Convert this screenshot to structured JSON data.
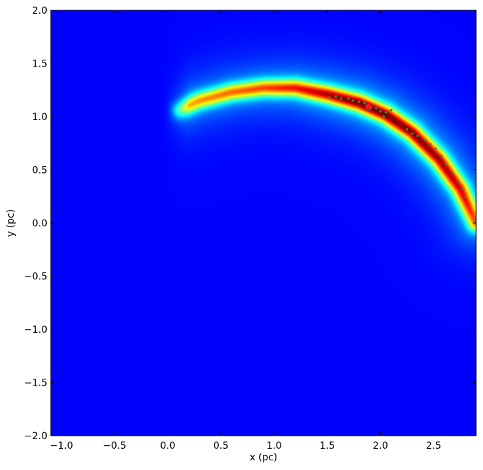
{
  "chart_data": {
    "type": "heatmap",
    "title": "",
    "xlabel": "x (pc)",
    "ylabel": "y (pc)",
    "xlim": [
      -1.1,
      2.9
    ],
    "ylim": [
      -2.0,
      2.0
    ],
    "x_ticks": [
      -1.0,
      -0.5,
      0.0,
      0.5,
      1.0,
      1.5,
      2.0,
      2.5
    ],
    "x_tick_labels": [
      "−1.0",
      "−0.5",
      "0.0",
      "0.5",
      "1.0",
      "1.5",
      "2.0",
      "2.5"
    ],
    "y_ticks": [
      2.0,
      1.5,
      1.0,
      0.5,
      0.0,
      -0.5,
      -1.0,
      -1.5,
      -2.0
    ],
    "y_tick_labels": [
      "2.0",
      "1.5",
      "1.0",
      "0.5",
      "0.0",
      "−0.5",
      "−1.0",
      "−1.5",
      "−2.0"
    ],
    "colormap": "jet",
    "background_color": "#00007f",
    "grid": false,
    "arc_ridge": [
      [
        0.1,
        1.06
      ],
      [
        0.3,
        1.15
      ],
      [
        0.6,
        1.23
      ],
      [
        0.9,
        1.27
      ],
      [
        1.2,
        1.27
      ],
      [
        1.5,
        1.21
      ],
      [
        1.8,
        1.13
      ],
      [
        2.05,
        1.02
      ],
      [
        2.3,
        0.85
      ],
      [
        2.55,
        0.6
      ],
      [
        2.75,
        0.32
      ],
      [
        2.9,
        0.0
      ]
    ],
    "arc_peak_intensity": [
      0.55,
      0.62,
      0.66,
      0.7,
      0.76,
      0.85,
      0.92,
      0.92,
      0.9,
      0.86,
      0.8,
      0.68
    ],
    "stars": [
      [
        1.52,
        1.18
      ],
      [
        1.58,
        1.19
      ],
      [
        1.63,
        1.17
      ],
      [
        1.7,
        1.17
      ],
      [
        1.74,
        1.15
      ],
      [
        1.8,
        1.14
      ],
      [
        1.85,
        1.13
      ],
      [
        1.9,
        1.11
      ],
      [
        1.96,
        1.08
      ],
      [
        2.0,
        1.05
      ],
      [
        2.05,
        1.04
      ],
      [
        2.1,
        1.06
      ],
      [
        2.03,
        1.0
      ],
      [
        2.25,
        0.88
      ],
      [
        2.3,
        0.84
      ],
      [
        2.35,
        0.82
      ],
      [
        2.42,
        0.78
      ],
      [
        2.47,
        0.74
      ],
      [
        2.52,
        0.7
      ],
      [
        2.57,
        0.63
      ],
      [
        2.62,
        0.55
      ],
      [
        2.68,
        0.47
      ],
      [
        2.73,
        0.39
      ],
      [
        2.77,
        0.32
      ],
      [
        2.8,
        0.24
      ]
    ],
    "star_color": "#2e8b3a",
    "marker": {
      "x": 1.89,
      "y": 1.09,
      "color": "#e8171b"
    }
  }
}
